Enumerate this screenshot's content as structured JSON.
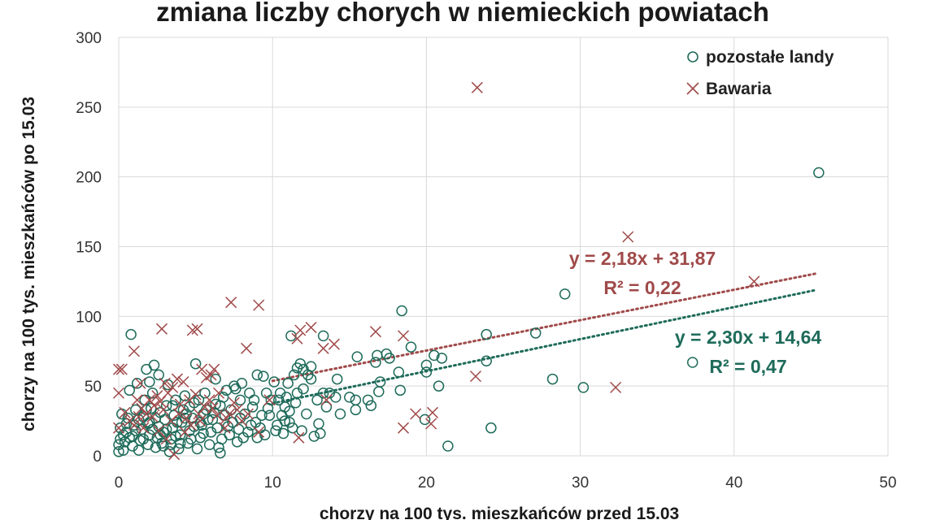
{
  "chart_data": {
    "type": "scatter",
    "title": "zmiana liczby chorych w niemieckich powiatach",
    "xlabel": "chorzy na 100 tys. mieszkańców przed 15.03",
    "ylabel": "chorzy na 100 tys. mieszkańców po 15.03",
    "xlim": [
      0,
      50
    ],
    "ylim": [
      0,
      300
    ],
    "x_ticks": [
      "0",
      "10",
      "20",
      "30",
      "40",
      "50"
    ],
    "y_ticks": [
      "0",
      "50",
      "100",
      "150",
      "200",
      "250",
      "300"
    ],
    "x_tick_values": [
      0,
      10,
      20,
      30,
      40,
      50
    ],
    "y_tick_values": [
      0,
      50,
      100,
      150,
      200,
      250,
      300
    ],
    "grid": true,
    "legend_position": "top-right",
    "series": [
      {
        "name": "pozostałe landy",
        "marker": "circle",
        "color": "#1e6b5a",
        "trendline": {
          "slope": 2.3,
          "intercept": 14.64,
          "x_range": [
            10,
            50
          ],
          "equation": "y = 2,30x + 14,64",
          "r2": "R² = 0,47"
        },
        "points": [
          [
            45.5,
            203
          ],
          [
            29,
            116
          ],
          [
            37.3,
            67
          ],
          [
            28.2,
            55
          ],
          [
            30.2,
            49
          ],
          [
            24.2,
            20
          ],
          [
            21.4,
            7
          ],
          [
            27.1,
            88
          ],
          [
            23.9,
            87
          ],
          [
            23.9,
            68
          ],
          [
            21.0,
            70
          ],
          [
            20.5,
            72
          ],
          [
            20.0,
            65
          ],
          [
            20.0,
            60
          ],
          [
            20.8,
            50
          ],
          [
            19.9,
            26
          ],
          [
            18.4,
            104
          ],
          [
            19.0,
            78
          ],
          [
            18.2,
            60
          ],
          [
            18.3,
            47
          ],
          [
            17.4,
            73
          ],
          [
            17.6,
            70
          ],
          [
            17.0,
            53
          ],
          [
            16.9,
            46
          ],
          [
            16.8,
            72
          ],
          [
            16.7,
            67
          ],
          [
            16.2,
            40
          ],
          [
            15.5,
            71
          ],
          [
            15.4,
            40
          ],
          [
            15.4,
            33
          ],
          [
            16.4,
            36
          ],
          [
            14.2,
            55
          ],
          [
            14.1,
            42
          ],
          [
            13.7,
            45
          ],
          [
            13.3,
            45
          ],
          [
            13.5,
            35
          ],
          [
            13.3,
            86
          ],
          [
            13.1,
            16
          ],
          [
            12.7,
            14
          ],
          [
            12.5,
            64
          ],
          [
            12.3,
            58
          ],
          [
            12.5,
            55
          ],
          [
            12.0,
            48
          ],
          [
            12.0,
            62
          ],
          [
            11.8,
            66
          ],
          [
            11.6,
            63
          ],
          [
            11.6,
            45
          ],
          [
            11.5,
            38
          ],
          [
            11.4,
            58
          ],
          [
            11.2,
            86
          ],
          [
            11.0,
            52
          ],
          [
            11.1,
            32
          ],
          [
            11.1,
            24
          ],
          [
            10.9,
            42
          ],
          [
            10.8,
            35
          ],
          [
            10.6,
            29
          ],
          [
            10.5,
            45
          ],
          [
            10.3,
            22
          ],
          [
            10.2,
            18
          ],
          [
            10.1,
            53
          ],
          [
            9.9,
            40
          ],
          [
            9.8,
            29
          ],
          [
            9.6,
            45
          ],
          [
            9.5,
            15
          ],
          [
            9.2,
            20
          ],
          [
            9.0,
            58
          ],
          [
            9.0,
            13
          ],
          [
            8.7,
            35
          ],
          [
            8.5,
            45
          ],
          [
            8.4,
            17
          ],
          [
            8.0,
            52
          ],
          [
            7.9,
            40
          ],
          [
            7.9,
            27
          ],
          [
            7.7,
            10
          ],
          [
            7.5,
            50
          ],
          [
            7.3,
            33
          ],
          [
            7.1,
            21
          ],
          [
            7.0,
            47
          ],
          [
            6.9,
            29
          ],
          [
            6.7,
            12
          ],
          [
            6.5,
            6
          ],
          [
            6.6,
            2
          ],
          [
            6.3,
            55
          ],
          [
            6.3,
            37
          ],
          [
            6.1,
            26
          ],
          [
            6.0,
            17
          ],
          [
            5.9,
            8
          ],
          [
            5.6,
            45
          ],
          [
            5.5,
            30
          ],
          [
            5.4,
            22
          ],
          [
            5.3,
            13
          ],
          [
            5.1,
            5
          ],
          [
            5.0,
            66
          ],
          [
            4.9,
            38
          ],
          [
            4.8,
            27
          ],
          [
            4.6,
            18
          ],
          [
            4.5,
            9
          ],
          [
            4.3,
            43
          ],
          [
            4.2,
            33
          ],
          [
            4.1,
            24
          ],
          [
            4.0,
            15
          ],
          [
            3.9,
            5
          ],
          [
            3.7,
            40
          ],
          [
            3.6,
            29
          ],
          [
            3.5,
            20
          ],
          [
            3.4,
            12
          ],
          [
            3.3,
            3
          ],
          [
            3.2,
            51
          ],
          [
            3.1,
            36
          ],
          [
            3.0,
            26
          ],
          [
            2.9,
            17
          ],
          [
            2.8,
            9
          ],
          [
            2.7,
            31
          ],
          [
            2.6,
            21
          ],
          [
            2.5,
            13
          ],
          [
            2.4,
            6
          ],
          [
            2.3,
            65
          ],
          [
            2.2,
            45
          ],
          [
            2.1,
            34
          ],
          [
            2.0,
            24
          ],
          [
            2.0,
            15
          ],
          [
            1.9,
            8
          ],
          [
            1.8,
            62
          ],
          [
            1.7,
            40
          ],
          [
            1.6,
            28
          ],
          [
            1.5,
            19
          ],
          [
            1.4,
            11
          ],
          [
            1.3,
            4
          ],
          [
            1.2,
            52
          ],
          [
            1.1,
            33
          ],
          [
            1.0,
            22
          ],
          [
            0.9,
            14
          ],
          [
            0.9,
            7
          ],
          [
            0.8,
            87
          ],
          [
            0.7,
            47
          ],
          [
            0.6,
            27
          ],
          [
            0.5,
            17
          ],
          [
            0.4,
            10
          ],
          [
            0.3,
            4
          ],
          [
            0.2,
            30
          ],
          [
            0.1,
            20
          ],
          [
            0.1,
            12
          ],
          [
            0.0,
            8
          ],
          [
            0.0,
            3
          ],
          [
            2.0,
            53
          ],
          [
            2.6,
            58
          ],
          [
            3.5,
            36
          ],
          [
            4.4,
            30
          ],
          [
            5.2,
            40
          ],
          [
            6.8,
            42
          ],
          [
            7.6,
            48
          ],
          [
            8.9,
            24
          ],
          [
            9.4,
            57
          ],
          [
            10.7,
            16
          ],
          [
            12.9,
            40
          ],
          [
            0.5,
            23
          ],
          [
            1.6,
            12
          ],
          [
            2.9,
            7
          ],
          [
            3.8,
            24
          ],
          [
            4.7,
            12
          ],
          [
            5.7,
            33
          ],
          [
            6.4,
            20
          ],
          [
            7.2,
            15
          ],
          [
            8.2,
            30
          ],
          [
            8.8,
            40
          ],
          [
            9.7,
            34
          ],
          [
            10.4,
            40
          ],
          [
            11.3,
            20
          ],
          [
            12.2,
            30
          ],
          [
            1.3,
            26
          ],
          [
            0.3,
            15
          ],
          [
            2.2,
            19
          ],
          [
            3.4,
            8
          ],
          [
            4.3,
            27
          ],
          [
            5.5,
            16
          ],
          [
            6.2,
            31
          ],
          [
            7.4,
            24
          ],
          [
            8.1,
            13
          ],
          [
            9.3,
            29
          ],
          [
            10.8,
            25
          ],
          [
            11.9,
            18
          ],
          [
            13.0,
            23
          ],
          [
            14.4,
            30
          ],
          [
            15.0,
            42
          ],
          [
            1.8,
            33
          ],
          [
            2.4,
            27
          ],
          [
            3.7,
            14
          ],
          [
            4.9,
            21
          ],
          [
            5.8,
            26
          ],
          [
            6.6,
            36
          ],
          [
            7.8,
            19
          ],
          [
            8.6,
            22
          ],
          [
            0.7,
            13
          ],
          [
            1.1,
            18
          ],
          [
            1.9,
            23
          ],
          [
            2.7,
            15
          ],
          [
            3.1,
            19
          ],
          [
            4.0,
            9
          ],
          [
            4.6,
            35
          ],
          [
            5.3,
            24
          ]
        ]
      },
      {
        "name": "Bawaria",
        "marker": "x",
        "color": "#a04a4a",
        "trendline": {
          "slope": 2.18,
          "intercept": 31.87,
          "x_range": [
            10,
            50
          ],
          "equation": "y = 2,18x + 31,87",
          "r2": "R² = 0,22"
        },
        "points": [
          [
            23.3,
            264
          ],
          [
            33.1,
            157
          ],
          [
            41.3,
            125
          ],
          [
            32.3,
            49
          ],
          [
            23.2,
            57
          ],
          [
            20.3,
            23
          ],
          [
            20.4,
            31
          ],
          [
            19.3,
            30
          ],
          [
            18.5,
            20
          ],
          [
            18.5,
            86
          ],
          [
            16.7,
            89
          ],
          [
            14.0,
            80
          ],
          [
            13.5,
            40
          ],
          [
            13.3,
            77
          ],
          [
            12.5,
            92
          ],
          [
            11.8,
            90
          ],
          [
            11.7,
            13
          ],
          [
            11.6,
            84
          ],
          [
            9.1,
            108
          ],
          [
            8.3,
            77
          ],
          [
            7.3,
            110
          ],
          [
            5.1,
            91
          ],
          [
            4.8,
            90
          ],
          [
            2.8,
            91
          ],
          [
            1.0,
            75
          ],
          [
            1.4,
            52
          ],
          [
            0.0,
            62
          ],
          [
            0.2,
            62
          ],
          [
            0.0,
            45
          ],
          [
            0.0,
            20
          ],
          [
            6.2,
            62
          ],
          [
            6.0,
            58
          ],
          [
            5.7,
            56
          ],
          [
            5.4,
            62
          ],
          [
            5.0,
            44
          ],
          [
            4.6,
            40
          ],
          [
            4.2,
            53
          ],
          [
            3.8,
            55
          ],
          [
            3.5,
            49
          ],
          [
            3.2,
            45
          ],
          [
            3.0,
            52
          ],
          [
            2.7,
            39
          ],
          [
            2.5,
            43
          ],
          [
            2.3,
            36
          ],
          [
            2.0,
            40
          ],
          [
            1.8,
            30
          ],
          [
            1.5,
            34
          ],
          [
            1.3,
            28
          ],
          [
            1.0,
            22
          ],
          [
            0.7,
            25
          ],
          [
            3.6,
            1
          ],
          [
            3.9,
            30
          ],
          [
            4.4,
            27
          ],
          [
            5.6,
            35
          ],
          [
            6.4,
            29
          ],
          [
            7.0,
            27
          ],
          [
            7.7,
            33
          ],
          [
            8.4,
            30
          ],
          [
            9.1,
            17
          ],
          [
            9.8,
            40
          ],
          [
            6.5,
            45
          ],
          [
            7.5,
            38
          ],
          [
            8.0,
            25
          ],
          [
            2.2,
            28
          ],
          [
            3.4,
            25
          ],
          [
            4.0,
            37
          ],
          [
            5.2,
            30
          ],
          [
            6.9,
            20
          ],
          [
            1.6,
            20
          ],
          [
            2.9,
            33
          ],
          [
            4.7,
            22
          ],
          [
            5.9,
            40
          ],
          [
            7.2,
            30
          ],
          [
            0.4,
            31
          ],
          [
            1.2,
            40
          ],
          [
            2.6,
            18
          ],
          [
            3.1,
            12
          ],
          [
            4.3,
            17
          ],
          [
            5.3,
            25
          ],
          [
            6.1,
            34
          ]
        ]
      }
    ]
  }
}
